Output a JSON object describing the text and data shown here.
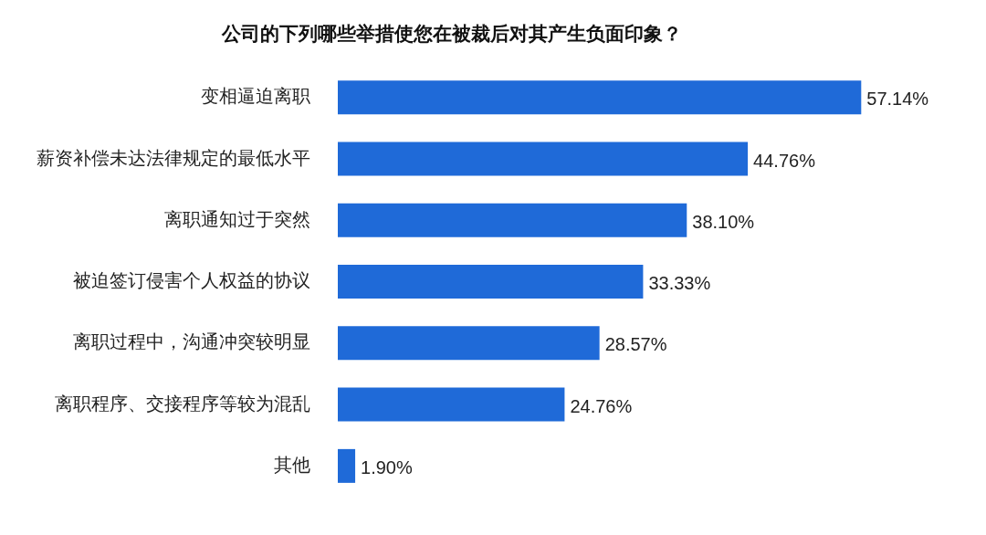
{
  "chart_data": {
    "type": "bar",
    "orientation": "horizontal",
    "title": "公司的下列哪些举措使您在被裁后对其产生负面印象？",
    "categories": [
      "变相逼迫离职",
      "薪资补偿未达法律规定的最低水平",
      "离职通知过于突然",
      "被迫签订侵害个人权益的协议",
      "离职过程中，沟通冲突较明显",
      "离职程序、交接程序等较为混乱",
      "其他"
    ],
    "values": [
      57.14,
      44.76,
      38.1,
      33.33,
      28.57,
      24.76,
      1.9
    ],
    "value_labels": [
      "57.14%",
      "44.76%",
      "38.10%",
      "33.33%",
      "28.57%",
      "24.76%",
      "1.90%"
    ],
    "color": "#1f6ad8"
  }
}
